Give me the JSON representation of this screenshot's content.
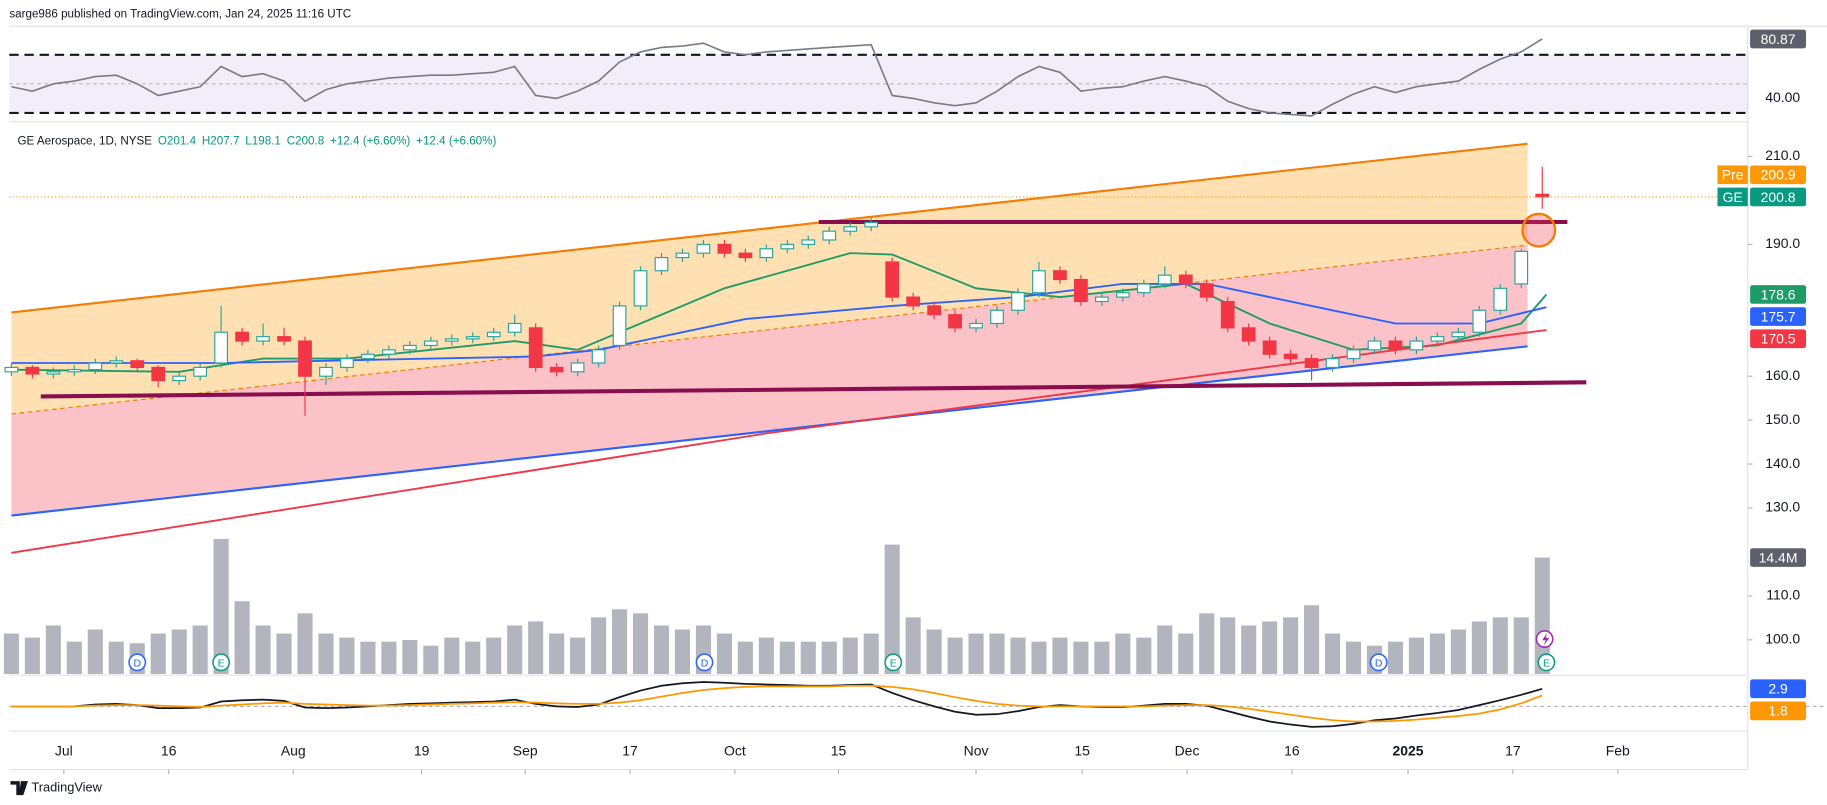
{
  "header": {
    "published": "sarge986 published on TradingView.com, Jan 24, 2025 11:16 UTC"
  },
  "legend": {
    "symbol": "GE Aerospace, 1D, NYSE",
    "ohlc": [
      "O201.4",
      "H207.7",
      "L198.1",
      "C200.8"
    ],
    "change": [
      "+12.4 (+6.60%)",
      "+12.4 (+6.60%)"
    ]
  },
  "footer": {
    "brand": "TradingView"
  },
  "chart_data": [
    {
      "type": "candlestick",
      "open": [
        161,
        162,
        160.5,
        161,
        161.5,
        163,
        163.5,
        162,
        159,
        160,
        163,
        170,
        168,
        169,
        168,
        160,
        162,
        164,
        165,
        166,
        167,
        168,
        168.5,
        169,
        170,
        171,
        162,
        161,
        163,
        167,
        176,
        184,
        187,
        188,
        190,
        188,
        187,
        189,
        190,
        191,
        193,
        194,
        186,
        178,
        176,
        174,
        171,
        172,
        175,
        179,
        184,
        182,
        177,
        178,
        179,
        181,
        183,
        181,
        177,
        171,
        168,
        165,
        164,
        162,
        164,
        166,
        168,
        166,
        168,
        169,
        170,
        175,
        181,
        201.4
      ],
      "high": [
        163,
        162.5,
        162,
        162.5,
        164,
        164.5,
        164,
        162.5,
        161,
        163,
        176,
        171,
        172,
        171,
        169,
        163,
        165,
        166,
        167,
        168,
        169,
        169.5,
        170,
        171,
        174,
        172,
        163,
        164,
        167,
        177,
        185,
        188,
        189,
        191,
        191,
        189,
        190,
        191,
        192,
        194,
        195,
        196,
        187,
        179,
        177,
        175,
        173,
        176,
        180,
        186,
        185,
        183,
        179,
        180,
        182,
        185,
        184,
        182,
        178,
        172,
        169,
        166,
        165,
        165,
        167,
        169,
        169,
        169,
        170,
        171,
        176,
        181,
        189,
        207.7
      ],
      "low": [
        160,
        159.5,
        159.5,
        160,
        160.5,
        162,
        161,
        157.5,
        158,
        159,
        162,
        167,
        167,
        167,
        151,
        158,
        161,
        163,
        164,
        165,
        166,
        167,
        167.5,
        168,
        169,
        161,
        160,
        160,
        162,
        166,
        175,
        183,
        186,
        187,
        187,
        186,
        186,
        188,
        189,
        190,
        192,
        193,
        177,
        175,
        173,
        170,
        170,
        171,
        174,
        178,
        181,
        176,
        176,
        177,
        178,
        180,
        180,
        177,
        170,
        167,
        164,
        163,
        159,
        161,
        163,
        165,
        165,
        165,
        167,
        168,
        169,
        174,
        180,
        198.1
      ],
      "close": [
        162,
        160.5,
        161,
        161.5,
        163,
        163.5,
        162,
        159,
        160,
        162,
        170,
        168,
        169,
        168,
        160,
        162,
        164,
        165,
        166,
        167,
        168,
        168.5,
        169,
        170,
        172,
        162,
        161,
        163,
        166,
        176,
        184,
        187,
        188,
        190,
        188,
        187,
        189,
        190,
        191,
        193,
        194,
        195,
        178,
        176,
        174,
        171,
        172,
        175,
        179,
        184,
        182,
        177,
        178,
        179,
        181,
        183,
        181,
        178,
        171,
        168,
        165,
        164,
        162,
        164,
        166,
        168,
        166,
        168,
        169,
        170,
        175,
        180,
        188.4,
        200.8
      ],
      "up_color": "#26a69a",
      "down_color": "#f23645",
      "xlim": [
        -0.1,
        82.8
      ],
      "ylim": [
        91.7,
        215.8
      ],
      "yticks": [
        {
          "value": 100,
          "label": "100.0"
        },
        {
          "value": 110,
          "label": "110.0"
        },
        {
          "value": 130,
          "label": "130.0"
        },
        {
          "value": 140,
          "label": "140.0"
        },
        {
          "value": 150,
          "label": "150.0"
        },
        {
          "value": 160,
          "label": "160.0"
        },
        {
          "value": 190,
          "label": "190.0"
        },
        {
          "value": 210,
          "label": "210.0"
        }
      ],
      "xticks": [
        {
          "value": 2.5,
          "label": "Jul"
        },
        {
          "value": 7.5,
          "label": "16"
        },
        {
          "value": 13.44,
          "label": "Aug"
        },
        {
          "value": 19.56,
          "label": "19"
        },
        {
          "value": 24.5,
          "label": "Sep"
        },
        {
          "value": 29.5,
          "label": "17"
        },
        {
          "value": 34.5,
          "label": "Oct"
        },
        {
          "value": 39.44,
          "label": "15"
        },
        {
          "value": 46,
          "label": "Nov"
        },
        {
          "value": 51.06,
          "label": "15"
        },
        {
          "value": 56.06,
          "label": "Dec"
        },
        {
          "value": 61.06,
          "label": "16"
        },
        {
          "value": 66.6,
          "label": "2025",
          "bold": true
        },
        {
          "value": 71.6,
          "label": "17"
        },
        {
          "value": 76.6,
          "label": "Feb"
        }
      ],
      "channel": {
        "x": [
          0,
          72.3
        ],
        "upper": [
          174.5,
          212.9
        ],
        "middle": [
          151.4,
          189.8
        ],
        "lower": [
          128.3,
          166.8
        ],
        "upper_color": "#f57c00",
        "lower_color": "#2962ff",
        "upper_fill": "rgba(255,152,0,0.3)",
        "lower_fill": "rgba(242,54,69,0.3)"
      },
      "levels": [
        {
          "x": [
            38.5,
            74.2
          ],
          "values": [
            195.1,
            195.1
          ],
          "color": "#880e4f"
        },
        {
          "x": [
            1.4,
            75.1
          ],
          "values": [
            155.4,
            158.6
          ],
          "color": "#880e4f"
        }
      ],
      "moving_averages": [
        {
          "color": "#1e9c68",
          "x": [
            0,
            8,
            12,
            16,
            24,
            27,
            30,
            34,
            40,
            42,
            46,
            50,
            56,
            60,
            64,
            68,
            72,
            73.2
          ],
          "values": [
            161.5,
            161,
            164,
            164,
            168,
            166,
            172,
            180,
            188,
            187.7,
            180,
            178,
            181,
            172,
            166,
            167,
            172,
            178.6
          ],
          "badge": 178.6
        },
        {
          "color": "#2962ff",
          "x": [
            0,
            10,
            20,
            25,
            28,
            35,
            42,
            48,
            53,
            57,
            62,
            66,
            70,
            73.2
          ],
          "values": [
            163,
            163,
            164,
            164.5,
            166,
            173,
            176,
            178,
            181,
            181,
            176,
            172,
            172,
            175.7
          ],
          "badge": 175.7
        },
        {
          "color": "#f23645",
          "x": [
            0,
            36,
            73.2
          ],
          "values": [
            119.8,
            147,
            170.5
          ],
          "badge": 170.5
        }
      ],
      "badges": [
        {
          "label": "Pre",
          "value": 200.9,
          "color": "#ff9800"
        },
        {
          "label": "GE",
          "value": 200.8,
          "color": "#089981"
        }
      ],
      "events": [
        {
          "label": "D",
          "x": 6,
          "color": "#2962ff"
        },
        {
          "label": "E",
          "x": 10,
          "color": "#089981"
        },
        {
          "label": "D",
          "x": 33.05,
          "color": "#2962ff"
        },
        {
          "label": "E",
          "x": 42.05,
          "color": "#089981"
        },
        {
          "label": "D",
          "x": 65.2,
          "color": "#2962ff"
        },
        {
          "label": "E",
          "x": 73.2,
          "color": "#089981"
        }
      ]
    },
    {
      "type": "bar",
      "color": "#b2b5be",
      "ylim": [
        0,
        50
      ],
      "values": [
        5,
        4.5,
        6,
        4,
        5.5,
        4,
        3.8,
        5,
        5.5,
        6,
        16.7,
        9,
        6,
        5,
        7.5,
        5,
        4.5,
        4,
        4,
        4.2,
        3.5,
        4.5,
        4,
        4.5,
        6,
        6.5,
        5,
        4.5,
        7,
        8,
        7.5,
        6,
        5.5,
        6,
        5,
        4,
        4.5,
        4,
        4,
        4,
        4.5,
        5,
        16,
        7,
        5.5,
        4.5,
        5,
        5,
        4.5,
        4,
        4.5,
        4,
        4,
        5,
        4.5,
        6,
        5,
        7.5,
        7,
        6,
        6.5,
        7,
        8.5,
        5,
        4,
        3.5,
        4,
        4.5,
        5,
        5.5,
        6.5,
        7,
        7,
        14.4
      ],
      "badge": {
        "value": 14.4,
        "label": "14.4M"
      }
    },
    {
      "type": "line",
      "color": "#787b86",
      "ylim": [
        27.2,
        87.3
      ],
      "yticks": [
        {
          "value": 40,
          "label": "40.00"
        }
      ],
      "levels": [
        30,
        50,
        70
      ],
      "values": [
        48,
        45,
        50,
        52,
        55,
        56,
        50,
        42,
        45,
        48,
        62,
        55,
        57,
        52,
        38,
        46,
        50,
        52,
        54,
        55,
        56,
        56,
        57,
        58,
        62,
        42,
        40,
        45,
        52,
        65,
        72,
        75,
        76,
        78,
        72,
        70,
        72,
        73,
        74,
        75,
        76,
        77,
        42,
        40,
        37,
        35,
        37,
        45,
        55,
        62,
        58,
        45,
        47,
        48,
        52,
        55,
        52,
        48,
        38,
        33,
        30,
        29,
        28,
        36,
        43,
        48,
        44,
        48,
        50,
        52,
        60,
        67,
        72,
        80.87
      ],
      "badge": 80.87
    },
    {
      "type": "line",
      "ylim": [
        -3.7,
        4.95
      ],
      "series": [
        {
          "color": "#131722",
          "values": [
            0,
            0,
            0,
            0,
            0.3,
            0.4,
            0.2,
            -0.3,
            -0.3,
            -0.2,
            0.8,
            1,
            1.1,
            0.9,
            -0.2,
            -0.3,
            -0.2,
            0,
            0.2,
            0.4,
            0.5,
            0.6,
            0.7,
            0.8,
            1.1,
            0.4,
            0,
            -0.1,
            0.3,
            1.5,
            2.6,
            3.4,
            3.8,
            4,
            3.9,
            3.7,
            3.6,
            3.5,
            3.4,
            3.4,
            3.5,
            3.6,
            2.2,
            1,
            0,
            -0.9,
            -1.4,
            -1.3,
            -0.8,
            -0.1,
            0.2,
            0,
            -0.1,
            -0.1,
            0.1,
            0.4,
            0.4,
            0.1,
            -0.8,
            -1.7,
            -2.5,
            -3,
            -3.4,
            -3.3,
            -2.9,
            -2.3,
            -2,
            -1.5,
            -1.1,
            -0.6,
            0.2,
            1,
            1.9,
            2.9
          ],
          "badge": 2.9,
          "badge_color": "#2962ff"
        },
        {
          "color": "#ff9800",
          "values": [
            0,
            0,
            0,
            0,
            0.1,
            0.2,
            0.2,
            0.1,
            0,
            -0.1,
            0.1,
            0.3,
            0.5,
            0.6,
            0.4,
            0.3,
            0.2,
            0.1,
            0.1,
            0.2,
            0.3,
            0.4,
            0.5,
            0.6,
            0.7,
            0.6,
            0.5,
            0.4,
            0.4,
            0.6,
            1,
            1.6,
            2.2,
            2.7,
            3,
            3.2,
            3.3,
            3.3,
            3.3,
            3.3,
            3.4,
            3.4,
            3.2,
            2.8,
            2.2,
            1.5,
            0.9,
            0.4,
            0.1,
            0,
            0,
            0,
            0,
            0,
            0,
            0.1,
            0.2,
            0.2,
            0,
            -0.4,
            -0.9,
            -1.4,
            -1.9,
            -2.3,
            -2.5,
            -2.5,
            -2.4,
            -2.2,
            -1.9,
            -1.6,
            -1.2,
            -0.5,
            0.5,
            1.8
          ],
          "badge": 1.8,
          "badge_color": "#ff9800"
        }
      ]
    }
  ]
}
